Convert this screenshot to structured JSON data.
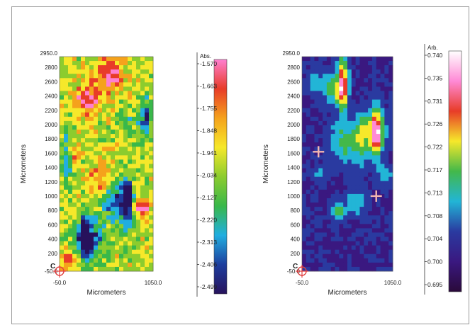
{
  "chart_data": [
    {
      "type": "heatmap",
      "title": "",
      "xlabel": "Micrometers",
      "ylabel": "Micrometers",
      "xlim": [
        -50.0,
        1050.0
      ],
      "ylim": [
        -50.0,
        2950.0
      ],
      "x_tick_labels": [
        "-50.0",
        "1050.0"
      ],
      "y_tick_labels": [
        "-50.0",
        "200",
        "400",
        "600",
        "800",
        "1000",
        "1200",
        "1400",
        "1600",
        "1800",
        "2000",
        "2200",
        "2400",
        "2600",
        "2800",
        "2950.0"
      ],
      "colorbar": {
        "label": "Abs.",
        "tick_labels": [
          "-1.570",
          "-1.663",
          "-1.755",
          "-1.848",
          "-1.941",
          "-2.034",
          "-2.127",
          "-2.220",
          "-2.313",
          "-2.406",
          "-2.499"
        ]
      },
      "grid": false,
      "markers": [
        {
          "type": "crosshair",
          "x": -50,
          "y": -50,
          "label": "C"
        }
      ],
      "colors": {
        "palette": [
          "#ff7fd0",
          "#e83c28",
          "#f5a21c",
          "#f6e82a",
          "#8ccc2e",
          "#39b84a",
          "#21aee0",
          "#1d3e9e",
          "#27125c"
        ]
      }
    },
    {
      "type": "heatmap",
      "title": "",
      "xlabel": "Micrometers",
      "ylabel": "Micrometers",
      "xlim": [
        -50.0,
        1050.0
      ],
      "ylim": [
        -50.0,
        2950.0
      ],
      "x_tick_labels": [
        "-50.0",
        "1050.0"
      ],
      "y_tick_labels": [
        "-50.0",
        "200",
        "400",
        "600",
        "800",
        "1000",
        "1200",
        "1400",
        "1600",
        "1800",
        "2000",
        "2200",
        "2400",
        "2600",
        "2800",
        "2950.0"
      ],
      "colorbar": {
        "label": "Arb.",
        "tick_labels": [
          "0.740",
          "0.735",
          "0.731",
          "0.726",
          "0.722",
          "0.717",
          "0.713",
          "0.708",
          "0.704",
          "0.700",
          "0.695"
        ]
      },
      "grid": false,
      "markers": [
        {
          "type": "crosshair",
          "x": 150,
          "y": 1620
        },
        {
          "type": "crosshair",
          "x": 850,
          "y": 1000
        },
        {
          "type": "crosshair",
          "x": -50,
          "y": -50,
          "label": "C"
        }
      ],
      "colors": {
        "palette": [
          "#ffffff",
          "#ff8ad6",
          "#e83c28",
          "#f6e82a",
          "#43b84a",
          "#22b5d6",
          "#2a3aa0",
          "#3a1880",
          "#2a0a3a"
        ]
      }
    }
  ]
}
